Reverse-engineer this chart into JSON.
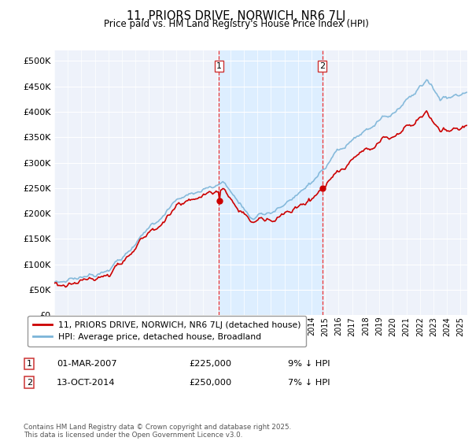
{
  "title": "11, PRIORS DRIVE, NORWICH, NR6 7LJ",
  "subtitle": "Price paid vs. HM Land Registry's House Price Index (HPI)",
  "ylim": [
    0,
    520000
  ],
  "yticks": [
    0,
    50000,
    100000,
    150000,
    200000,
    250000,
    300000,
    350000,
    400000,
    450000,
    500000
  ],
  "ytick_labels": [
    "£0",
    "£50K",
    "£100K",
    "£150K",
    "£200K",
    "£250K",
    "£300K",
    "£350K",
    "£400K",
    "£450K",
    "£500K"
  ],
  "hpi_color": "#7bb4d8",
  "price_color": "#cc0000",
  "shade_color": "#ddeeff",
  "vline_color": "#ee3333",
  "plot_background": "#eef2fa",
  "grid_color": "#ffffff",
  "legend_label_price": "11, PRIORS DRIVE, NORWICH, NR6 7LJ (detached house)",
  "legend_label_hpi": "HPI: Average price, detached house, Broadland",
  "annotation1_date": "01-MAR-2007",
  "annotation1_price": "£225,000",
  "annotation1_pct": "9% ↓ HPI",
  "annotation2_date": "13-OCT-2014",
  "annotation2_price": "£250,000",
  "annotation2_pct": "7% ↓ HPI",
  "footer": "Contains HM Land Registry data © Crown copyright and database right 2025.\nThis data is licensed under the Open Government Licence v3.0.",
  "sale1_year": 2007.17,
  "sale2_year": 2014.79,
  "sale1_price": 225000,
  "sale2_price": 250000
}
